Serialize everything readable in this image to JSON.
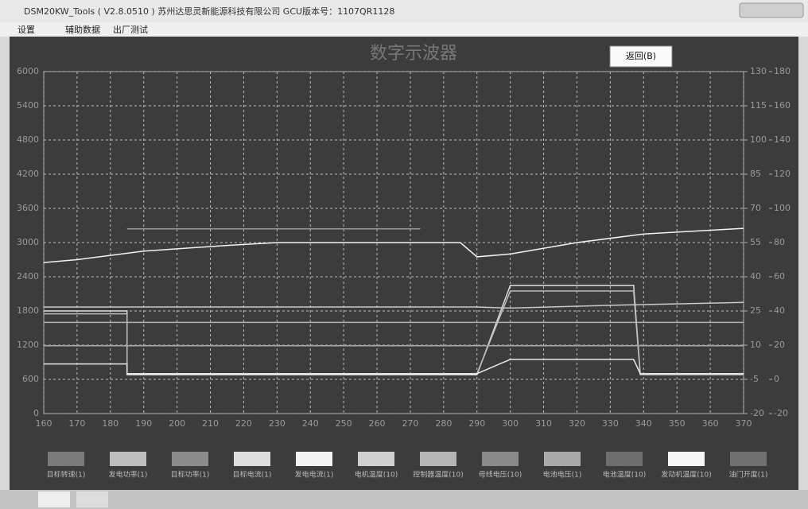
{
  "window": {
    "title": "DSM20KW_Tools ( V2.8.0510 )   苏州达思灵新能源科技有限公司 GCU版本号：1107QR1128",
    "menu": [
      "设置",
      "辅助数据",
      "出厂测试"
    ]
  },
  "chart": {
    "type": "line",
    "title": "数字示波器",
    "button": "返回(B)",
    "xlim": [
      160,
      370
    ],
    "xticks": [
      160,
      170,
      180,
      190,
      200,
      210,
      220,
      230,
      240,
      250,
      260,
      270,
      280,
      290,
      300,
      310,
      320,
      330,
      340,
      350,
      360,
      370
    ],
    "ylim": [
      0,
      6000
    ],
    "yticks": [
      0,
      600,
      1200,
      1800,
      2400,
      3000,
      3600,
      4200,
      4800,
      5400,
      6000
    ],
    "y2lim": [
      -20,
      130
    ],
    "y2ticks": [
      -20,
      -5,
      10,
      25,
      40,
      55,
      70,
      85,
      100,
      115,
      130
    ],
    "y3lim": [
      -20,
      180
    ],
    "y3ticks": [
      -20,
      0,
      20,
      40,
      60,
      80,
      100,
      120,
      140,
      160,
      180
    ],
    "grid": true,
    "series": [
      {
        "color": "#f2f2f2",
        "x": [
          160,
          170,
          190,
          215,
          230,
          285,
          290,
          300,
          320,
          340,
          370
        ],
        "values": [
          2650,
          2700,
          2850,
          2950,
          3000,
          3000,
          2750,
          2800,
          3000,
          3150,
          3250
        ]
      },
      {
        "color": "#9a9a9a",
        "x": [
          185,
          273
        ],
        "values": [
          3240,
          3240
        ]
      },
      {
        "color": "#dcdcdc",
        "x": [
          160,
          185,
          185,
          290,
          300,
          337,
          339,
          370
        ],
        "values": [
          1800,
          1800,
          680,
          680,
          2250,
          2250,
          700,
          700
        ]
      },
      {
        "color": "#bdbdbd",
        "x": [
          160,
          185,
          185,
          290,
          300,
          337,
          339,
          370
        ],
        "values": [
          1750,
          1750,
          700,
          700,
          2150,
          2150,
          680,
          680
        ]
      },
      {
        "color": "#c8c8c8",
        "x": [
          160,
          290,
          300,
          330,
          370
        ],
        "values": [
          1870,
          1870,
          1850,
          1900,
          1950
        ]
      },
      {
        "color": "#b0b0b0",
        "x": [
          160,
          370
        ],
        "values": [
          1600,
          1600
        ]
      },
      {
        "color": "#a8a8a8",
        "x": [
          160,
          370
        ],
        "values": [
          1190,
          1190
        ]
      },
      {
        "color": "#e6e6e6",
        "x": [
          160,
          185,
          185,
          290,
          300,
          337,
          339,
          370
        ],
        "values": [
          870,
          870,
          700,
          700,
          950,
          950,
          700,
          700
        ]
      }
    ],
    "legend": [
      {
        "label": "目标转速(1)",
        "color": "#7a7a7a"
      },
      {
        "label": "发电功率(1)",
        "color": "#bdbdbd"
      },
      {
        "label": "目标功率(1)",
        "color": "#8c8c8c"
      },
      {
        "label": "目标电流(1)",
        "color": "#dedede"
      },
      {
        "label": "发电电流(1)",
        "color": "#f4f4f4"
      },
      {
        "label": "电机温度(10)",
        "color": "#cfcfcf"
      },
      {
        "label": "控制器温度(10)",
        "color": "#b5b5b5"
      },
      {
        "label": "母线电压(10)",
        "color": "#8a8a8a"
      },
      {
        "label": "电池电压(1)",
        "color": "#a9a9a9"
      },
      {
        "label": "电池温度(10)",
        "color": "#6e6e6e"
      },
      {
        "label": "发动机温度(10)",
        "color": "#f7f7f7"
      },
      {
        "label": "油门开度(1)",
        "color": "#707070"
      }
    ]
  }
}
